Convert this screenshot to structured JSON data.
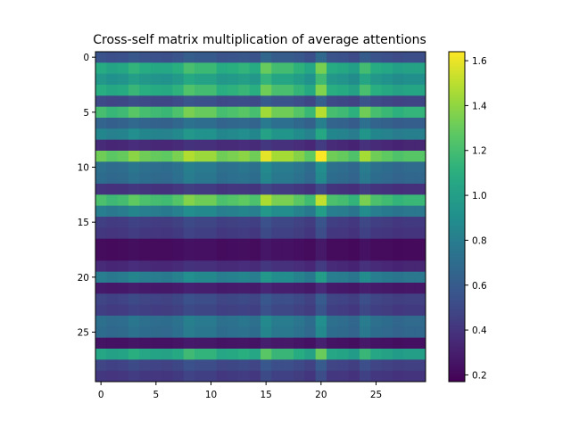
{
  "chart_data": {
    "type": "heatmap",
    "title": "Cross-self matrix multiplication of average attentions",
    "xlabel": "",
    "ylabel": "",
    "rows": 30,
    "cols": 30,
    "xlim": [
      -0.5,
      29.5
    ],
    "ylim": [
      29.5,
      -0.5
    ],
    "x_ticks": [
      0,
      5,
      10,
      15,
      20,
      25
    ],
    "y_ticks": [
      0,
      5,
      10,
      15,
      20,
      25
    ],
    "colorbar": {
      "range": [
        0.17,
        1.64
      ],
      "ticks": [
        "0.2",
        "0.4",
        "0.6",
        "0.8",
        "1.0",
        "1.2",
        "1.4",
        "1.6"
      ],
      "tick_values": [
        0.2,
        0.4,
        0.6,
        0.8,
        1.0,
        1.2,
        1.4,
        1.6
      ],
      "colormap": "viridis"
    },
    "row_base": [
      0.55,
      1.08,
      0.95,
      1.1,
      0.5,
      1.2,
      0.65,
      0.85,
      0.35,
      1.32,
      0.72,
      0.7,
      0.4,
      1.22,
      0.8,
      0.45,
      0.42,
      0.22,
      0.22,
      0.35,
      0.8,
      0.28,
      0.48,
      0.45,
      0.72,
      0.7,
      0.25,
      1.05,
      0.48,
      0.42
    ],
    "col_factor": [
      1.0,
      0.96,
      0.98,
      1.05,
      1.0,
      0.98,
      0.97,
      1.02,
      1.12,
      1.08,
      1.08,
      1.0,
      1.02,
      1.05,
      1.0,
      1.2,
      1.1,
      1.1,
      1.04,
      0.97,
      1.24,
      1.0,
      0.98,
      0.93,
      1.1,
      1.0,
      0.97,
      0.93,
      0.95,
      0.95
    ]
  }
}
